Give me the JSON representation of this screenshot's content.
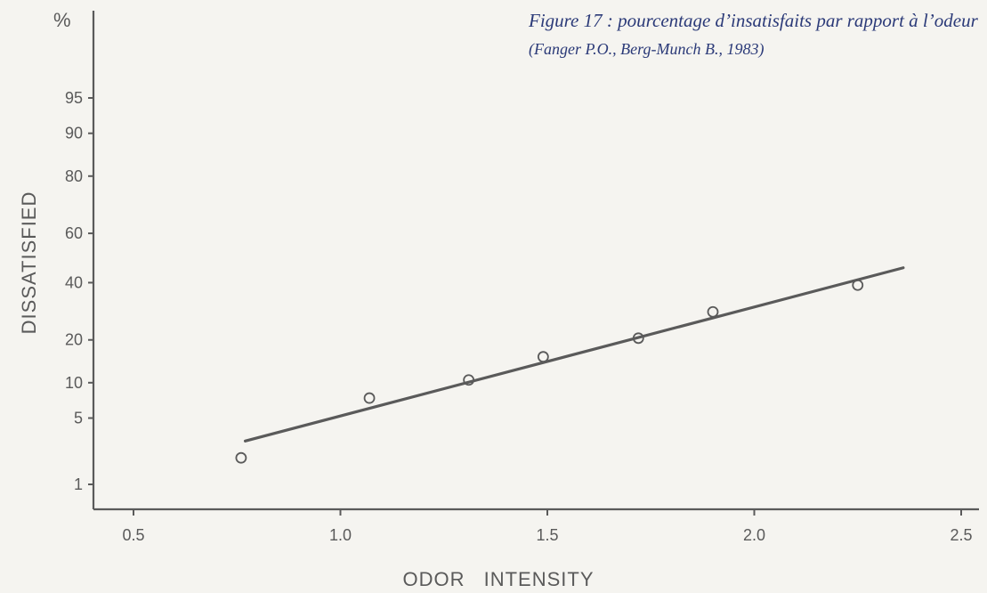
{
  "caption": {
    "text": "Figure 17 : pourcentage d’insatisfaits par rapport à l’odeur",
    "source": "(Fanger P.O., Berg-Munch B., 1983)"
  },
  "colors": {
    "ink": "#5a5a5a",
    "background": "#f5f4f0",
    "caption": "#2b3a78"
  },
  "chart_data": {
    "type": "scatter",
    "title": "",
    "xlabel": "ODOR INTENSITY",
    "ylabel": "DISSATISFIED",
    "y_unit_label": "%",
    "y_scale": "probability",
    "xlim": [
      0.4,
      2.5
    ],
    "x_ticks": [
      0.5,
      1.0,
      1.5,
      2.0,
      2.5
    ],
    "x_tick_labels": [
      "0.5",
      "1.0",
      "1.5",
      "2.0",
      "2.5"
    ],
    "y_ticks": [
      1,
      5,
      10,
      20,
      40,
      60,
      80,
      90,
      95
    ],
    "y_tick_labels": [
      "1",
      "5",
      "10",
      "20",
      "40",
      "60",
      "80",
      "90",
      "95"
    ],
    "grid": false,
    "points": [
      {
        "x": 0.76,
        "y": 2
      },
      {
        "x": 1.07,
        "y": 7.5
      },
      {
        "x": 1.31,
        "y": 10.5
      },
      {
        "x": 1.49,
        "y": 15.5
      },
      {
        "x": 1.72,
        "y": 20.5
      },
      {
        "x": 1.9,
        "y": 29
      },
      {
        "x": 2.25,
        "y": 39
      }
    ],
    "fit_line": [
      {
        "x": 0.77,
        "y": 3
      },
      {
        "x": 2.36,
        "y": 46
      }
    ]
  }
}
